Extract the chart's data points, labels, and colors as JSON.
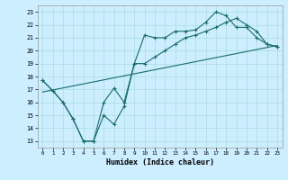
{
  "xlabel": "Humidex (Indice chaleur)",
  "bg_color": "#cceeff",
  "grid_color": "#aadddd",
  "line_color": "#1a6b6b",
  "xlim": [
    -0.5,
    23.5
  ],
  "ylim": [
    12.5,
    23.5
  ],
  "xticks": [
    0,
    1,
    2,
    3,
    4,
    5,
    6,
    7,
    8,
    9,
    10,
    11,
    12,
    13,
    14,
    15,
    16,
    17,
    18,
    19,
    20,
    21,
    22,
    23
  ],
  "yticks": [
    13,
    14,
    15,
    16,
    17,
    18,
    19,
    20,
    21,
    22,
    23
  ],
  "line1_x": [
    0,
    1,
    2,
    3,
    4,
    5,
    6,
    7,
    8,
    9,
    10,
    11,
    12,
    13,
    14,
    15,
    16,
    17,
    18,
    19,
    20,
    21,
    22,
    23
  ],
  "line1_y": [
    17.7,
    16.9,
    16.0,
    14.7,
    13.0,
    13.0,
    16.0,
    17.1,
    16.0,
    19.0,
    21.2,
    21.0,
    21.0,
    21.5,
    21.5,
    21.6,
    22.2,
    23.0,
    22.7,
    21.8,
    21.8,
    21.0,
    20.5,
    20.3
  ],
  "line2_x": [
    0,
    1,
    2,
    3,
    4,
    5,
    6,
    7,
    8,
    9,
    10,
    11,
    12,
    13,
    14,
    15,
    16,
    17,
    18,
    19,
    20,
    21,
    22,
    23
  ],
  "line2_y": [
    17.7,
    16.9,
    16.0,
    14.7,
    13.0,
    13.0,
    15.0,
    14.3,
    15.7,
    19.0,
    19.0,
    19.5,
    20.0,
    20.5,
    21.0,
    21.2,
    21.5,
    21.8,
    22.2,
    22.5,
    22.0,
    21.5,
    20.5,
    20.3
  ],
  "line3_x": [
    0,
    23
  ],
  "line3_y": [
    16.8,
    20.4
  ]
}
